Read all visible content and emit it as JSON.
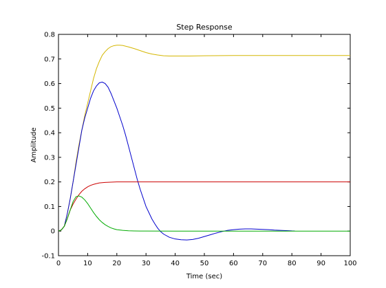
{
  "chart_data": {
    "type": "line",
    "title": "Step Response",
    "xlabel": "Time (sec)",
    "ylabel": "Amplitude",
    "xlim": [
      0,
      100
    ],
    "ylim": [
      -0.1,
      0.8
    ],
    "xticks": [
      0,
      10,
      20,
      30,
      40,
      50,
      60,
      70,
      80,
      90,
      100
    ],
    "yticks": [
      -0.1,
      0,
      0.1,
      0.2,
      0.3,
      0.4,
      0.5,
      0.6,
      0.7,
      0.8
    ],
    "grid": false,
    "legend": "none",
    "series": [
      {
        "color": "#d4b600",
        "points": [
          [
            0,
            0
          ],
          [
            1,
            0.005
          ],
          [
            2,
            0.02
          ],
          [
            3,
            0.07
          ],
          [
            4,
            0.13
          ],
          [
            5,
            0.2
          ],
          [
            6,
            0.28
          ],
          [
            7,
            0.35
          ],
          [
            8,
            0.41
          ],
          [
            9,
            0.47
          ],
          [
            10,
            0.52
          ],
          [
            11,
            0.57
          ],
          [
            12,
            0.62
          ],
          [
            13,
            0.66
          ],
          [
            14,
            0.69
          ],
          [
            15,
            0.715
          ],
          [
            16,
            0.73
          ],
          [
            17,
            0.742
          ],
          [
            18,
            0.75
          ],
          [
            19,
            0.754
          ],
          [
            20,
            0.756
          ],
          [
            21,
            0.756
          ],
          [
            22,
            0.755
          ],
          [
            24,
            0.749
          ],
          [
            26,
            0.742
          ],
          [
            28,
            0.734
          ],
          [
            30,
            0.726
          ],
          [
            32,
            0.72
          ],
          [
            34,
            0.716
          ],
          [
            36,
            0.713
          ],
          [
            38,
            0.712
          ],
          [
            40,
            0.712
          ],
          [
            45,
            0.712
          ],
          [
            50,
            0.713
          ],
          [
            60,
            0.714
          ],
          [
            70,
            0.714
          ],
          [
            80,
            0.714
          ],
          [
            90,
            0.714
          ],
          [
            100,
            0.714
          ]
        ]
      },
      {
        "color": "#0000cc",
        "points": [
          [
            0,
            0
          ],
          [
            1,
            0.005
          ],
          [
            2,
            0.02
          ],
          [
            3,
            0.07
          ],
          [
            4,
            0.13
          ],
          [
            5,
            0.2
          ],
          [
            6,
            0.27
          ],
          [
            7,
            0.34
          ],
          [
            8,
            0.41
          ],
          [
            9,
            0.46
          ],
          [
            10,
            0.5
          ],
          [
            11,
            0.54
          ],
          [
            12,
            0.57
          ],
          [
            13,
            0.59
          ],
          [
            14,
            0.603
          ],
          [
            15,
            0.606
          ],
          [
            16,
            0.6
          ],
          [
            17,
            0.585
          ],
          [
            18,
            0.56
          ],
          [
            19,
            0.53
          ],
          [
            20,
            0.5
          ],
          [
            21,
            0.465
          ],
          [
            22,
            0.43
          ],
          [
            23,
            0.39
          ],
          [
            24,
            0.345
          ],
          [
            25,
            0.3
          ],
          [
            26,
            0.255
          ],
          [
            27,
            0.21
          ],
          [
            28,
            0.17
          ],
          [
            29,
            0.135
          ],
          [
            30,
            0.1
          ],
          [
            31,
            0.075
          ],
          [
            32,
            0.05
          ],
          [
            33,
            0.03
          ],
          [
            34,
            0.012
          ],
          [
            35,
            -0.002
          ],
          [
            36,
            -0.012
          ],
          [
            38,
            -0.025
          ],
          [
            40,
            -0.032
          ],
          [
            42,
            -0.035
          ],
          [
            44,
            -0.036
          ],
          [
            46,
            -0.034
          ],
          [
            48,
            -0.029
          ],
          [
            50,
            -0.022
          ],
          [
            52,
            -0.015
          ],
          [
            54,
            -0.008
          ],
          [
            56,
            -0.002
          ],
          [
            58,
            0.003
          ],
          [
            60,
            0.006
          ],
          [
            62,
            0.008
          ],
          [
            64,
            0.009
          ],
          [
            66,
            0.009
          ],
          [
            68,
            0.008
          ],
          [
            70,
            0.007
          ],
          [
            72,
            0.006
          ],
          [
            74,
            0.004
          ],
          [
            76,
            0.003
          ],
          [
            78,
            0.002
          ],
          [
            80,
            0.001
          ],
          [
            81,
            0.0008
          ]
        ]
      },
      {
        "color": "#cc0000",
        "points": [
          [
            0,
            0
          ],
          [
            1,
            0.005
          ],
          [
            2,
            0.02
          ],
          [
            3,
            0.05
          ],
          [
            4,
            0.085
          ],
          [
            5,
            0.11
          ],
          [
            6,
            0.13
          ],
          [
            7,
            0.148
          ],
          [
            8,
            0.162
          ],
          [
            9,
            0.172
          ],
          [
            10,
            0.18
          ],
          [
            11,
            0.186
          ],
          [
            12,
            0.19
          ],
          [
            13,
            0.193
          ],
          [
            14,
            0.196
          ],
          [
            16,
            0.198
          ],
          [
            18,
            0.199
          ],
          [
            20,
            0.2
          ],
          [
            25,
            0.2
          ],
          [
            30,
            0.2
          ],
          [
            40,
            0.2
          ],
          [
            50,
            0.2
          ],
          [
            60,
            0.2
          ],
          [
            70,
            0.2
          ],
          [
            80,
            0.2
          ],
          [
            90,
            0.2
          ],
          [
            100,
            0.2
          ]
        ]
      },
      {
        "color": "#00aa00",
        "points": [
          [
            0,
            0
          ],
          [
            1,
            0.005
          ],
          [
            2,
            0.02
          ],
          [
            3,
            0.05
          ],
          [
            4,
            0.085
          ],
          [
            5,
            0.12
          ],
          [
            6,
            0.14
          ],
          [
            7,
            0.143
          ],
          [
            8,
            0.138
          ],
          [
            9,
            0.127
          ],
          [
            10,
            0.112
          ],
          [
            11,
            0.094
          ],
          [
            12,
            0.076
          ],
          [
            13,
            0.06
          ],
          [
            14,
            0.046
          ],
          [
            15,
            0.035
          ],
          [
            16,
            0.026
          ],
          [
            17,
            0.019
          ],
          [
            18,
            0.013
          ],
          [
            19,
            0.009
          ],
          [
            20,
            0.006
          ],
          [
            22,
            0.003
          ],
          [
            24,
            0.0015
          ],
          [
            26,
            0.0008
          ],
          [
            28,
            0.0004
          ],
          [
            30,
            0.0002
          ],
          [
            40,
            0
          ],
          [
            50,
            0
          ],
          [
            60,
            0
          ],
          [
            70,
            0
          ],
          [
            80,
            0
          ],
          [
            90,
            0
          ],
          [
            100,
            0
          ]
        ]
      }
    ]
  }
}
